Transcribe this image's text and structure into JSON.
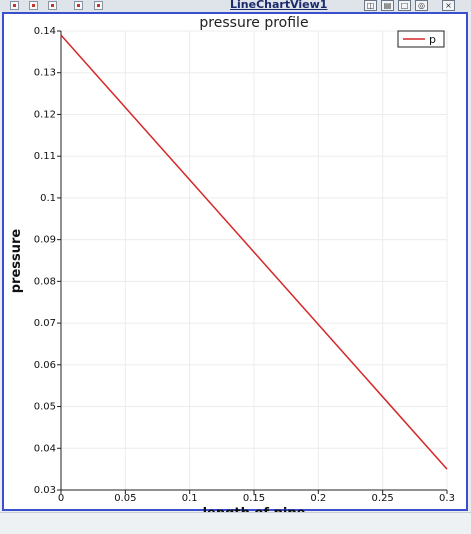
{
  "window": {
    "view_title": "LineChartView1"
  },
  "icons": {
    "toolbar": [
      "reset-camera-icon",
      "zoom-to-box-icon",
      "zoom-icon",
      "capture-icon",
      "toggle-view-icon"
    ],
    "window_buttons": [
      "split-horizontal-icon",
      "split-vertical-icon",
      "maximize-icon",
      "restore-icon",
      "close-icon"
    ]
  },
  "colors": {
    "series_line": "#d62728",
    "frame_border": "#3a4ed0"
  },
  "chart_data": {
    "type": "line",
    "title": "pressure profile",
    "xlabel": "length of pipe",
    "ylabel": "pressure",
    "xlim": [
      0,
      0.3
    ],
    "ylim": [
      0.03,
      0.14
    ],
    "xticks": [
      0,
      0.05,
      0.1,
      0.15,
      0.2,
      0.25,
      0.3
    ],
    "xtick_labels": [
      "0",
      "0.05",
      "0.1",
      "0.15",
      "0.2",
      "0.25",
      "0.3"
    ],
    "yticks": [
      0.03,
      0.04,
      0.05,
      0.06,
      0.07,
      0.08,
      0.09,
      0.1,
      0.11,
      0.12,
      0.13,
      0.14
    ],
    "ytick_labels": [
      "0.03",
      "0.04",
      "0.05",
      "0.06",
      "0.07",
      "0.08",
      "0.09",
      "0.1",
      "0.11",
      "0.12",
      "0.13",
      "0.14"
    ],
    "grid": true,
    "legend": "top-right",
    "series": [
      {
        "name": "p",
        "x": [
          0,
          0.3
        ],
        "y": [
          0.139,
          0.035
        ]
      }
    ]
  }
}
